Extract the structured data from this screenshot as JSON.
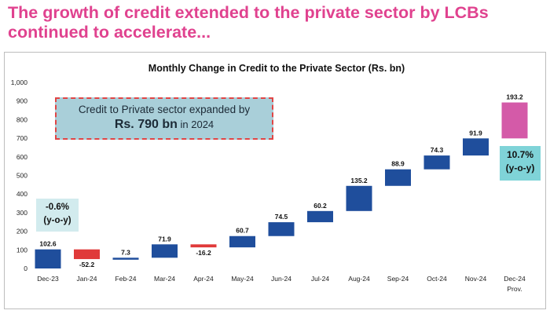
{
  "headline": {
    "line1": "The growth of credit extended to the private sector by LCBs",
    "line2": "continued to accelerate..."
  },
  "callout": {
    "line1": "Credit to Private sector expanded by",
    "amount": "Rs. 790 bn",
    "suffix": "in 2024"
  },
  "yoy_left": {
    "value": "-0.6%",
    "label": "(y-o-y)"
  },
  "yoy_right": {
    "value": "10.7%",
    "label": "(y-o-y)"
  },
  "colors": {
    "increase": "#1f4e9c",
    "decrease": "#e03a3a",
    "total": "#d45aa8",
    "headline": "#e0428f"
  },
  "chart_data": {
    "type": "bar",
    "subtype": "waterfall",
    "title": "Monthly Change in Credit to the Private Sector (Rs. bn)",
    "categories": [
      "Dec-23",
      "Jan-24",
      "Feb-24",
      "Mar-24",
      "Apr-24",
      "May-24",
      "Jun-24",
      "Jul-24",
      "Aug-24",
      "Sep-24",
      "Oct-24",
      "Nov-24",
      "Dec-24"
    ],
    "category_sublabels": [
      "",
      "",
      "",
      "",
      "",
      "",
      "",
      "",
      "",
      "",
      "",
      "",
      "Prov."
    ],
    "values": [
      102.6,
      -52.2,
      7.3,
      71.9,
      -16.2,
      60.7,
      74.5,
      60.2,
      135.2,
      88.9,
      74.3,
      91.9,
      193.2
    ],
    "value_labels": [
      "102.6",
      "-52.2",
      "7.3",
      "71.9",
      "-16.2",
      "60.7",
      "74.5",
      "60.2",
      "135.2",
      "88.9",
      "74.3",
      "91.9",
      "193.2"
    ],
    "ylim": [
      0,
      1000
    ],
    "yticks": [
      "0",
      "100",
      "200",
      "300",
      "400",
      "500",
      "600",
      "700",
      "800",
      "900",
      "1,000"
    ],
    "grid": false,
    "legend": "none"
  }
}
